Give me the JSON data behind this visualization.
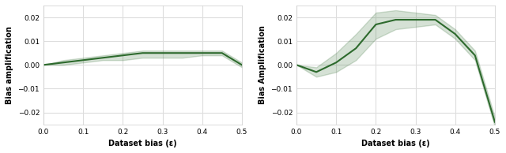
{
  "line_color": "#2d6a2d",
  "fill_color": "#2d6a2d",
  "fill_alpha": 0.2,
  "background_color": "#ffffff",
  "grid_color": "#dddddd",
  "plot1": {
    "ylabel": "Bias amplification",
    "xlabel": "Dataset bias (ε)",
    "ylim": [
      -0.025,
      0.025
    ],
    "xlim": [
      0.0,
      0.5
    ],
    "xticks": [
      0.0,
      0.1,
      0.2,
      0.3,
      0.4,
      0.5
    ],
    "yticks": [
      -0.02,
      -0.01,
      0.0,
      0.01,
      0.02
    ],
    "x": [
      0.0,
      0.05,
      0.1,
      0.15,
      0.2,
      0.25,
      0.3,
      0.35,
      0.4,
      0.45,
      0.5
    ],
    "y": [
      0.0,
      0.001,
      0.002,
      0.003,
      0.004,
      0.005,
      0.005,
      0.005,
      0.005,
      0.005,
      0.0
    ],
    "y_low": [
      0.0,
      0.0,
      0.001,
      0.002,
      0.002,
      0.003,
      0.003,
      0.003,
      0.004,
      0.004,
      -0.001
    ],
    "y_high": [
      0.0,
      0.002,
      0.003,
      0.004,
      0.005,
      0.006,
      0.006,
      0.006,
      0.006,
      0.006,
      0.001
    ]
  },
  "plot2": {
    "ylabel": "Bias Amplification",
    "xlabel": "Dataset bias (ε)",
    "ylim": [
      -0.025,
      0.025
    ],
    "xlim": [
      0.0,
      0.5
    ],
    "xticks": [
      0.0,
      0.1,
      0.2,
      0.3,
      0.4,
      0.5
    ],
    "yticks": [
      -0.02,
      -0.01,
      0.0,
      0.01,
      0.02
    ],
    "x": [
      0.0,
      0.05,
      0.1,
      0.15,
      0.2,
      0.25,
      0.3,
      0.35,
      0.4,
      0.45,
      0.5
    ],
    "y": [
      0.0,
      -0.003,
      0.001,
      0.007,
      0.017,
      0.019,
      0.019,
      0.019,
      0.013,
      0.004,
      -0.024
    ],
    "y_low": [
      0.0,
      -0.005,
      -0.003,
      0.002,
      0.011,
      0.015,
      0.016,
      0.017,
      0.011,
      0.002,
      -0.026
    ],
    "y_high": [
      0.0,
      -0.001,
      0.005,
      0.013,
      0.022,
      0.023,
      0.022,
      0.021,
      0.015,
      0.006,
      -0.022
    ]
  }
}
